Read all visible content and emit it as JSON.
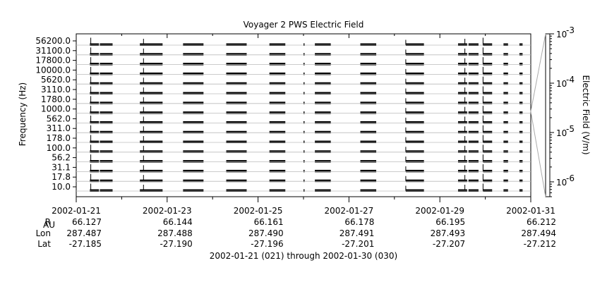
{
  "chart_data": {
    "type": "heatmap",
    "title": "Voyager 2 PWS Electric Field",
    "ylabel": "Frequency (Hz)",
    "colorbar_label": "Electric Field (V/m)",
    "colorbar_range": [
      5e-07,
      0.001
    ],
    "colorbar_scale": "log",
    "colorbar_ticks": [
      {
        "value": 0.001,
        "mant": "10",
        "exp": "-3"
      },
      {
        "value": 0.0001,
        "mant": "10",
        "exp": "-4"
      },
      {
        "value": 1e-05,
        "mant": "10",
        "exp": "-5"
      },
      {
        "value": 1e-06,
        "mant": "10",
        "exp": "-6"
      }
    ],
    "channels": [
      "56200.0",
      "31100.0",
      "17800.0",
      "10000.0",
      "5620.0",
      "3110.0",
      "1780.0",
      "1000.0",
      "562.0",
      "311.0",
      "178.0",
      "100.0",
      "56.2",
      "31.1",
      "17.8",
      "10.0"
    ],
    "xlim": [
      "2002-01-21",
      "2002-01-31"
    ],
    "x_tick_labels": [
      "2002-01-21",
      "2002-01-23",
      "2002-01-25",
      "2002-01-27",
      "2002-01-29",
      "2002-01-31"
    ],
    "ephemeris": {
      "rows": [
        {
          "label": "R",
          "sub": "AU",
          "values": [
            "66.127",
            "66.144",
            "66.161",
            "66.178",
            "66.195",
            "66.212"
          ]
        },
        {
          "label": "Lon",
          "sub": "",
          "values": [
            "287.487",
            "287.488",
            "287.490",
            "287.491",
            "287.493",
            "287.494"
          ]
        },
        {
          "label": "Lat",
          "sub": "",
          "values": [
            "-27.185",
            "-27.190",
            "-27.196",
            "-27.201",
            "-27.207",
            "-27.212"
          ]
        }
      ]
    },
    "time_range_label": "2002-01-21 (021) through 2002-01-30 (030)",
    "data_segments": [
      {
        "start": 0.3,
        "end": 0.5
      },
      {
        "start": 0.52,
        "end": 0.8
      },
      {
        "start": 1.4,
        "end": 1.9
      },
      {
        "start": 2.35,
        "end": 2.8
      },
      {
        "start": 3.3,
        "end": 3.75
      },
      {
        "start": 4.25,
        "end": 4.6
      },
      {
        "start": 5.0,
        "end": 5.02
      },
      {
        "start": 5.25,
        "end": 5.6
      },
      {
        "start": 6.25,
        "end": 6.6
      },
      {
        "start": 7.25,
        "end": 7.65
      },
      {
        "start": 8.4,
        "end": 8.6
      },
      {
        "start": 8.63,
        "end": 8.85
      },
      {
        "start": 8.95,
        "end": 9.15
      },
      {
        "start": 9.4,
        "end": 9.5
      },
      {
        "start": 9.75,
        "end": 9.82
      }
    ],
    "spikes": [
      {
        "t": 0.32,
        "strength": 3.5
      },
      {
        "t": 1.48,
        "strength": 3.0
      },
      {
        "t": 7.25,
        "strength": 2.5
      },
      {
        "t": 8.55,
        "strength": 3.0
      },
      {
        "t": 8.95,
        "strength": 3.5
      }
    ]
  }
}
